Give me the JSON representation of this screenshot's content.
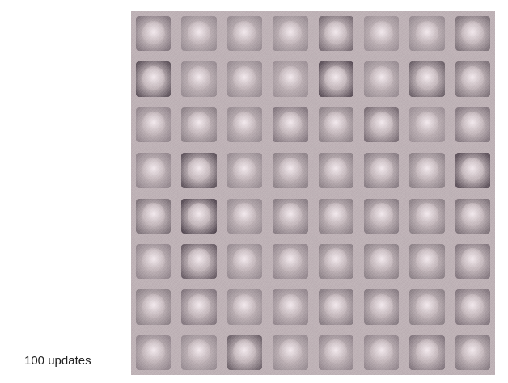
{
  "caption": "100 updates",
  "grid": {
    "rows": 8,
    "cols": 8,
    "tile_darkness": [
      [
        0.55,
        0.35,
        0.35,
        0.35,
        0.65,
        0.3,
        0.35,
        0.6
      ],
      [
        0.9,
        0.35,
        0.35,
        0.3,
        0.95,
        0.35,
        0.75,
        0.6
      ],
      [
        0.4,
        0.45,
        0.35,
        0.55,
        0.45,
        0.65,
        0.3,
        0.55
      ],
      [
        0.4,
        0.9,
        0.35,
        0.45,
        0.45,
        0.5,
        0.45,
        0.95
      ],
      [
        0.6,
        1.0,
        0.35,
        0.5,
        0.45,
        0.5,
        0.45,
        0.6
      ],
      [
        0.4,
        0.8,
        0.35,
        0.4,
        0.45,
        0.45,
        0.45,
        0.55
      ],
      [
        0.45,
        0.55,
        0.35,
        0.4,
        0.5,
        0.5,
        0.45,
        0.55
      ],
      [
        0.4,
        0.35,
        0.75,
        0.35,
        0.4,
        0.4,
        0.55,
        0.5
      ]
    ],
    "base_color": "#bfb3b7",
    "dark_color": "#3a2f3a"
  }
}
